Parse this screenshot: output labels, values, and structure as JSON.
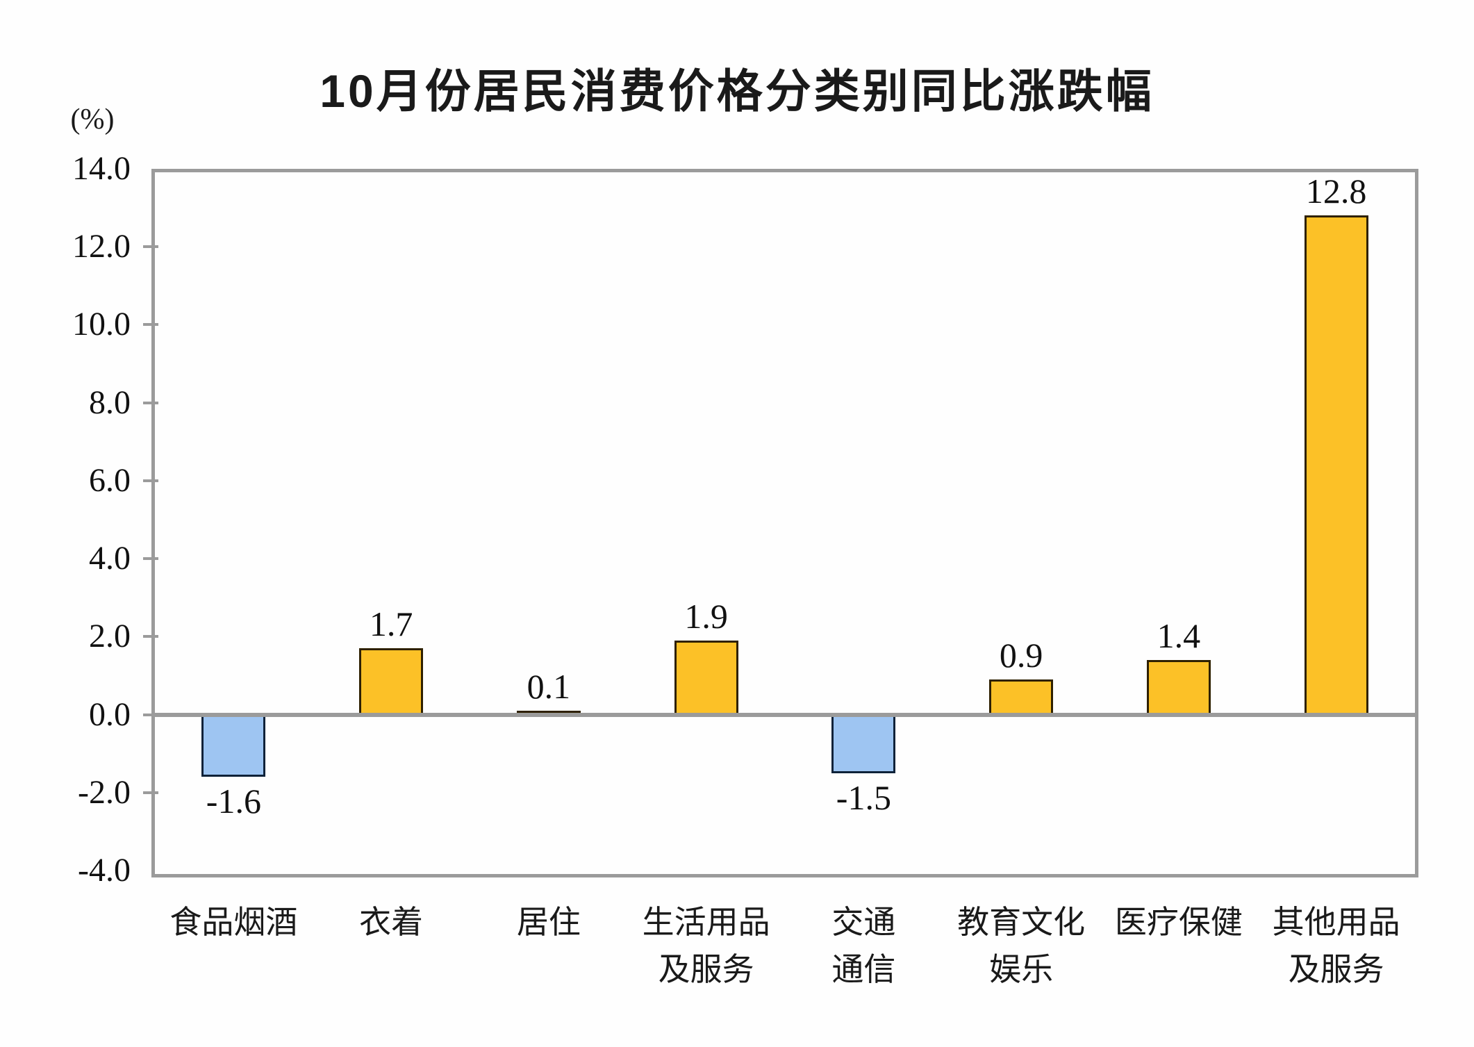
{
  "chart": {
    "title": "10月份居民消费价格分类别同比涨跌幅",
    "unit_label": "(%)"
  },
  "chart_data": {
    "type": "bar",
    "title": "10月份居民消费价格分类别同比涨跌幅",
    "unit": "%",
    "categories": [
      "食品烟酒",
      "衣着",
      "居住",
      "生活用品\n及服务",
      "交通\n通信",
      "教育文化\n娱乐",
      "医疗保健",
      "其他用品\n及服务"
    ],
    "values": [
      -1.6,
      1.7,
      0.1,
      1.9,
      -1.5,
      0.9,
      1.4,
      12.8
    ],
    "value_labels": [
      "-1.6",
      "1.7",
      "0.1",
      "1.9",
      "-1.5",
      "0.9",
      "1.4",
      "12.8"
    ],
    "y_tick_labels": [
      "14.0",
      "12.0",
      "10.0",
      "8.0",
      "6.0",
      "4.0",
      "2.0",
      "0.0",
      "-2.0",
      "-4.0"
    ],
    "y_tick_values": [
      14,
      12,
      10,
      8,
      6,
      4,
      2,
      0,
      -2,
      -4
    ],
    "ylim": [
      -4,
      14
    ],
    "xlabel": "",
    "ylabel": "(%)",
    "grid": false,
    "legend_position": "none",
    "colors": {
      "positive_bar_fill": "#FCC127",
      "positive_bar_border": "#2E2000",
      "negative_bar_fill": "#9EC5F2",
      "negative_bar_border": "#0E2239",
      "axis_frame": "#9B9B9B",
      "zero_line": "#9B9B9B",
      "label_text": "#111111"
    }
  }
}
